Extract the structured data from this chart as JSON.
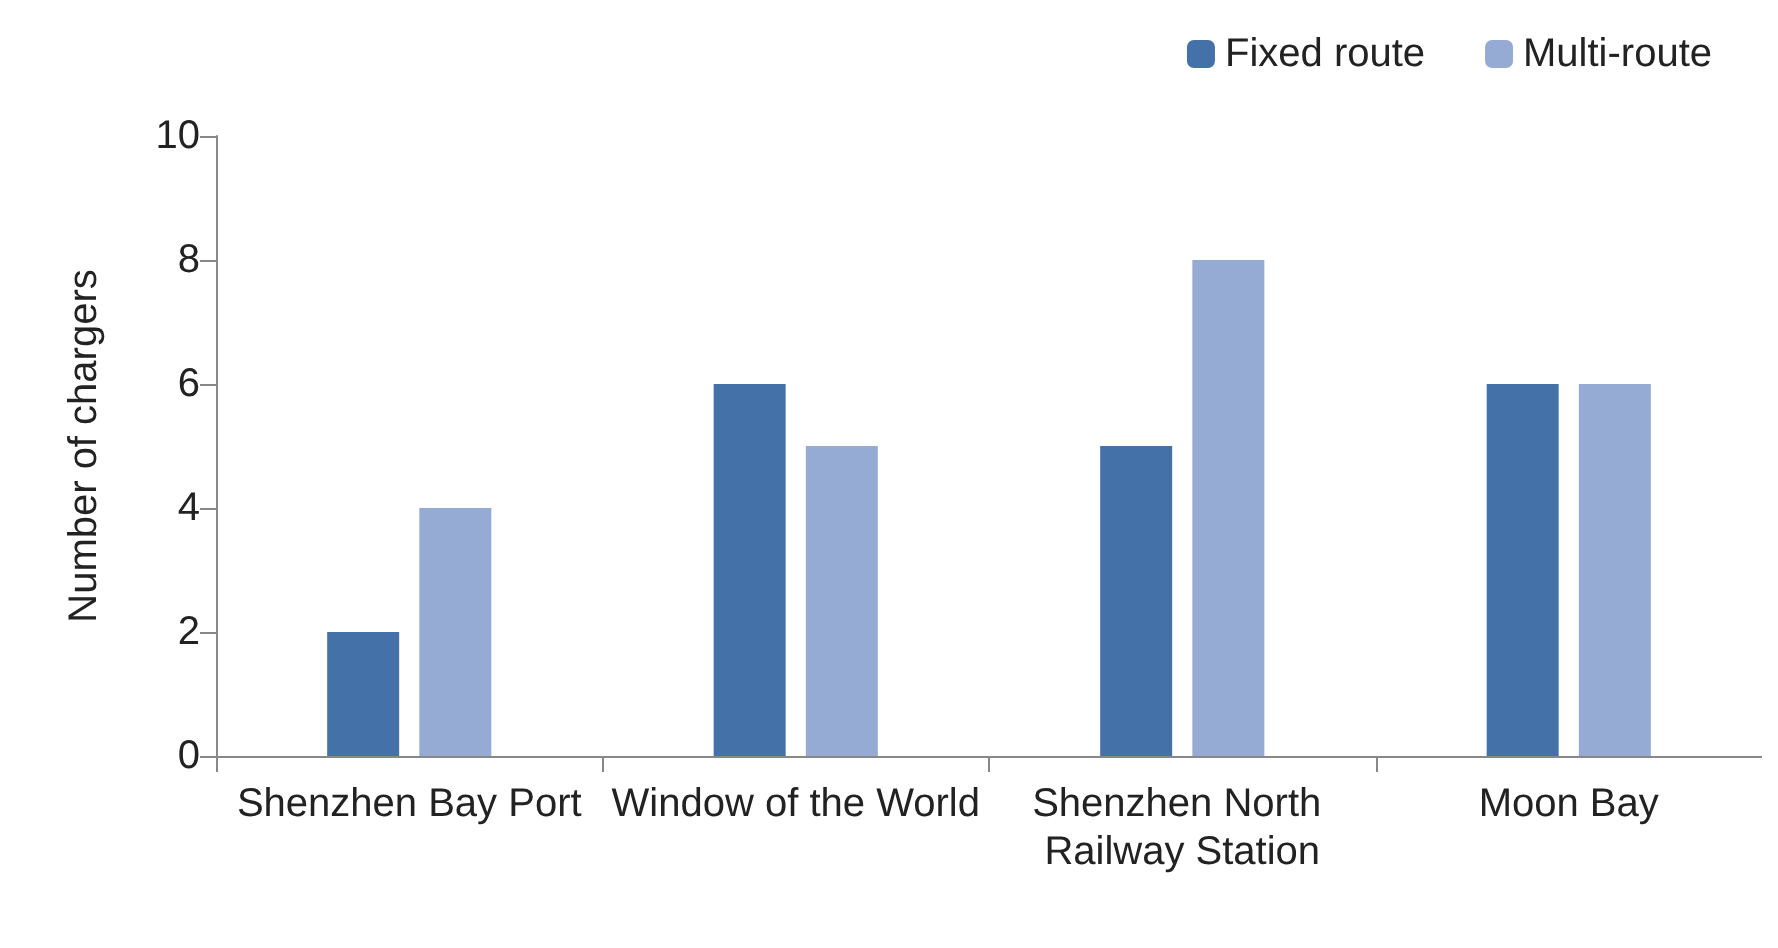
{
  "chart_data": {
    "type": "bar",
    "ylabel": "Number of chargers",
    "categories": [
      "Shenzhen Bay Port",
      "Window of the World",
      "Shenzhen North Railway Station",
      "Moon Bay"
    ],
    "series": [
      {
        "name": "Fixed route",
        "color": "#4472a8",
        "values": [
          2,
          6,
          5,
          6
        ]
      },
      {
        "name": "Multi-route",
        "color": "#95abd4",
        "values": [
          4,
          5,
          8,
          6
        ]
      }
    ],
    "ylim": [
      0,
      10
    ],
    "yticks": [
      0,
      2,
      4,
      6,
      8,
      10
    ],
    "grid": false,
    "legend": "top right"
  }
}
